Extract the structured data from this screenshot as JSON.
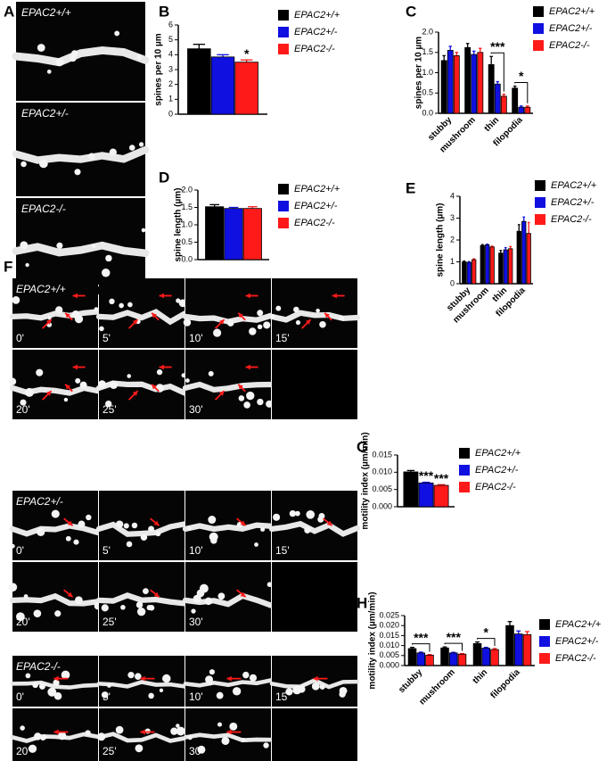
{
  "panel_a": {
    "label": "A",
    "images": [
      "EPAC2+/+",
      "EPAC2+/-",
      "EPAC2-/-"
    ]
  },
  "panel_f": {
    "label": "F",
    "groups": [
      {
        "genotype": "EPAC2+/+",
        "times": [
          "0'",
          "5'",
          "10'",
          "15'",
          "20'",
          "25'",
          "30'"
        ]
      },
      {
        "genotype": "EPAC2+/-",
        "times": [
          "0'",
          "5'",
          "10'",
          "15'",
          "20'",
          "25'",
          "30'"
        ]
      },
      {
        "genotype": "EPAC2-/-",
        "times": [
          "0'",
          "5'",
          "10'",
          "15'",
          "20'",
          "25'",
          "30'"
        ]
      }
    ]
  },
  "chart_data": [
    {
      "type": "bar",
      "panel": "B",
      "y_label": "spines per 10 µm",
      "ylim": [
        0,
        6
      ],
      "yticks": [
        0,
        1,
        2,
        3,
        4,
        5,
        6
      ],
      "series": [
        {
          "name": "EPAC2+/+",
          "color": "#000000",
          "values": [
            4.4
          ],
          "errors": [
            0.3
          ]
        },
        {
          "name": "EPAC2+/-",
          "color": "#1010e0",
          "values": [
            3.85
          ],
          "errors": [
            0.15
          ]
        },
        {
          "name": "EPAC2-/-",
          "color": "#ff1a1a",
          "values": [
            3.5
          ],
          "errors": [
            0.15
          ]
        }
      ],
      "annotations": [
        "*"
      ]
    },
    {
      "type": "bar",
      "panel": "C",
      "y_label": "spines per 10 µm",
      "categories": [
        "stubby",
        "mushroom",
        "thin",
        "filopodia"
      ],
      "ylim": [
        0,
        2
      ],
      "yticks": [
        {
          "value": 0,
          "label": "0.0"
        },
        0.5,
        {
          "value": 1,
          "label": "1.0"
        },
        1.5,
        {
          "value": 2,
          "label": "2.0"
        }
      ],
      "series": [
        {
          "name": "EPAC2+/+",
          "color": "#000000",
          "values": [
            1.3,
            1.62,
            1.2,
            0.62
          ],
          "errors": [
            0.12,
            0.1,
            0.2,
            0.05
          ]
        },
        {
          "name": "EPAC2+/-",
          "color": "#1010e0",
          "values": [
            1.55,
            1.45,
            0.72,
            0.15
          ],
          "errors": [
            0.1,
            0.08,
            0.06,
            0.03
          ]
        },
        {
          "name": "EPAC2-/-",
          "color": "#ff1a1a",
          "values": [
            1.42,
            1.5,
            0.42,
            0.15
          ],
          "errors": [
            0.08,
            0.1,
            0.05,
            0.03
          ]
        }
      ],
      "annotations": [
        "***",
        "*"
      ]
    },
    {
      "type": "bar",
      "panel": "D",
      "y_label": "spine length (µm)",
      "ylim": [
        0,
        2
      ],
      "yticks": [
        {
          "value": 0,
          "label": "0.0"
        },
        0.5,
        {
          "value": 1,
          "label": "1.0"
        },
        1.5,
        {
          "value": 2,
          "label": "2.0"
        }
      ],
      "series": [
        {
          "name": "EPAC2+/+",
          "color": "#000000",
          "values": [
            1.52
          ],
          "errors": [
            0.06
          ]
        },
        {
          "name": "EPAC2+/-",
          "color": "#1010e0",
          "values": [
            1.47
          ],
          "errors": [
            0.03
          ]
        },
        {
          "name": "EPAC2-/-",
          "color": "#ff1a1a",
          "values": [
            1.47
          ],
          "errors": [
            0.05
          ]
        }
      ],
      "annotations": []
    },
    {
      "type": "bar",
      "panel": "E",
      "y_label": "spine length (µm)",
      "categories": [
        "stubby",
        "mushroom",
        "thin",
        "filopodia"
      ],
      "ylim": [
        0,
        4
      ],
      "yticks": [
        0,
        1,
        2,
        3,
        4
      ],
      "series": [
        {
          "name": "EPAC2+/+",
          "color": "#000000",
          "values": [
            1.0,
            1.75,
            1.4,
            2.4
          ],
          "errors": [
            0.04,
            0.04,
            0.12,
            0.3
          ]
        },
        {
          "name": "EPAC2+/-",
          "color": "#1010e0",
          "values": [
            0.98,
            1.78,
            1.55,
            2.85
          ],
          "errors": [
            0.03,
            0.03,
            0.1,
            0.2
          ]
        },
        {
          "name": "EPAC2-/-",
          "color": "#ff1a1a",
          "values": [
            1.1,
            1.68,
            1.6,
            2.3
          ],
          "errors": [
            0.04,
            0.04,
            0.1,
            0.5
          ]
        }
      ],
      "annotations": []
    },
    {
      "type": "bar",
      "panel": "G",
      "y_label": "motility index (µm/min)",
      "ylim": [
        0,
        0.015
      ],
      "yticks": [
        {
          "value": 0,
          "label": "0.000"
        },
        0.005,
        {
          "value": 0.01,
          "label": "0.010"
        },
        0.015
      ],
      "series": [
        {
          "name": "EPAC2+/+",
          "color": "#000000",
          "values": [
            0.0101
          ],
          "errors": [
            0.0004
          ]
        },
        {
          "name": "EPAC2+/-",
          "color": "#1010e0",
          "values": [
            0.0069
          ],
          "errors": [
            0.0002
          ]
        },
        {
          "name": "EPAC2-/-",
          "color": "#ff1a1a",
          "values": [
            0.0062
          ],
          "errors": [
            0.0002
          ]
        }
      ],
      "annotations": [
        "***",
        "***"
      ]
    },
    {
      "type": "bar",
      "panel": "H",
      "y_label": "motility index (µm/min)",
      "categories": [
        "stubby",
        "mushroom",
        "thin",
        "filopodia"
      ],
      "ylim": [
        0,
        0.025
      ],
      "yticks": [
        {
          "value": 0,
          "label": "0.000"
        },
        0.005,
        {
          "value": 0.01,
          "label": "0.010"
        },
        0.015,
        {
          "value": 0.02,
          "label": "0.020"
        },
        0.025
      ],
      "series": [
        {
          "name": "EPAC2+/+",
          "color": "#000000",
          "values": [
            0.0085,
            0.0088,
            0.011,
            0.02
          ],
          "errors": [
            0.0006,
            0.0005,
            0.0008,
            0.002
          ]
        },
        {
          "name": "EPAC2+/-",
          "color": "#1010e0",
          "values": [
            0.0063,
            0.0063,
            0.0087,
            0.0158
          ],
          "errors": [
            0.0004,
            0.0003,
            0.0004,
            0.0015
          ]
        },
        {
          "name": "EPAC2-/-",
          "color": "#ff1a1a",
          "values": [
            0.0052,
            0.0057,
            0.008,
            0.0155
          ],
          "errors": [
            0.0003,
            0.0003,
            0.0005,
            0.0015
          ]
        }
      ],
      "annotations": [
        "***",
        "***",
        "*"
      ]
    }
  ]
}
